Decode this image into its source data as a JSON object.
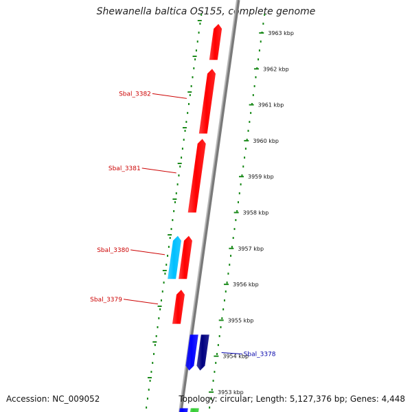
{
  "title": "Shewanella baltica OS155, complete genome",
  "accession": "Accession: NC_009052",
  "topology": "Topology: circular; Length: 5,127,376 bp; Genes: 4,448",
  "ruler": {
    "unit": "kbp",
    "ticks": [
      {
        "kbp": 3963,
        "label": "3963 kbp"
      },
      {
        "kbp": 3962,
        "label": "3962 kbp"
      },
      {
        "kbp": 3961,
        "label": "3961 kbp"
      },
      {
        "kbp": 3960,
        "label": "3960 kbp"
      },
      {
        "kbp": 3959,
        "label": "3959 kbp"
      },
      {
        "kbp": 3958,
        "label": "3958 kbp"
      },
      {
        "kbp": 3957,
        "label": "3957 kbp"
      },
      {
        "kbp": 3956,
        "label": "3956 kbp"
      },
      {
        "kbp": 3955,
        "label": "3955 kbp"
      },
      {
        "kbp": 3954,
        "label": "3954 kbp"
      },
      {
        "kbp": 3953,
        "label": "3953 kbp"
      }
    ]
  },
  "genes": [
    {
      "name": "",
      "strand": "reverse",
      "start_kbp": 3962.25,
      "end_kbp": 3963.25,
      "color": "#ff0000"
    },
    {
      "name": "Sbal_3382",
      "strand": "reverse",
      "start_kbp": 3960.2,
      "end_kbp": 3962.0,
      "color": "#ff0000"
    },
    {
      "name": "Sbal_3381",
      "strand": "reverse",
      "start_kbp": 3958.0,
      "end_kbp": 3960.05,
      "color": "#ff0000"
    },
    {
      "name": "Sbal_3380",
      "strand": "reverse",
      "start_kbp": 3956.15,
      "end_kbp": 3957.35,
      "color": "#ff0000"
    },
    {
      "name": "",
      "strand": "reverse",
      "start_kbp": 3956.15,
      "end_kbp": 3957.35,
      "color": "#00bfff"
    },
    {
      "name": "Sbal_3379",
      "strand": "reverse",
      "start_kbp": 3954.9,
      "end_kbp": 3955.85,
      "color": "#ff0000"
    },
    {
      "name": "Sbal_3378",
      "strand": "forward",
      "start_kbp": 3953.6,
      "end_kbp": 3954.6,
      "color": "#0000ff"
    },
    {
      "name": "",
      "strand": "forward",
      "start_kbp": 3953.6,
      "end_kbp": 3954.6,
      "color": "#000080"
    },
    {
      "name": "",
      "strand": "forward",
      "start_kbp": 3952.0,
      "end_kbp": 3952.55,
      "color": "#0000ff"
    },
    {
      "name": "",
      "strand": "forward",
      "start_kbp": 3952.0,
      "end_kbp": 3952.55,
      "color": "#33cc33"
    }
  ]
}
